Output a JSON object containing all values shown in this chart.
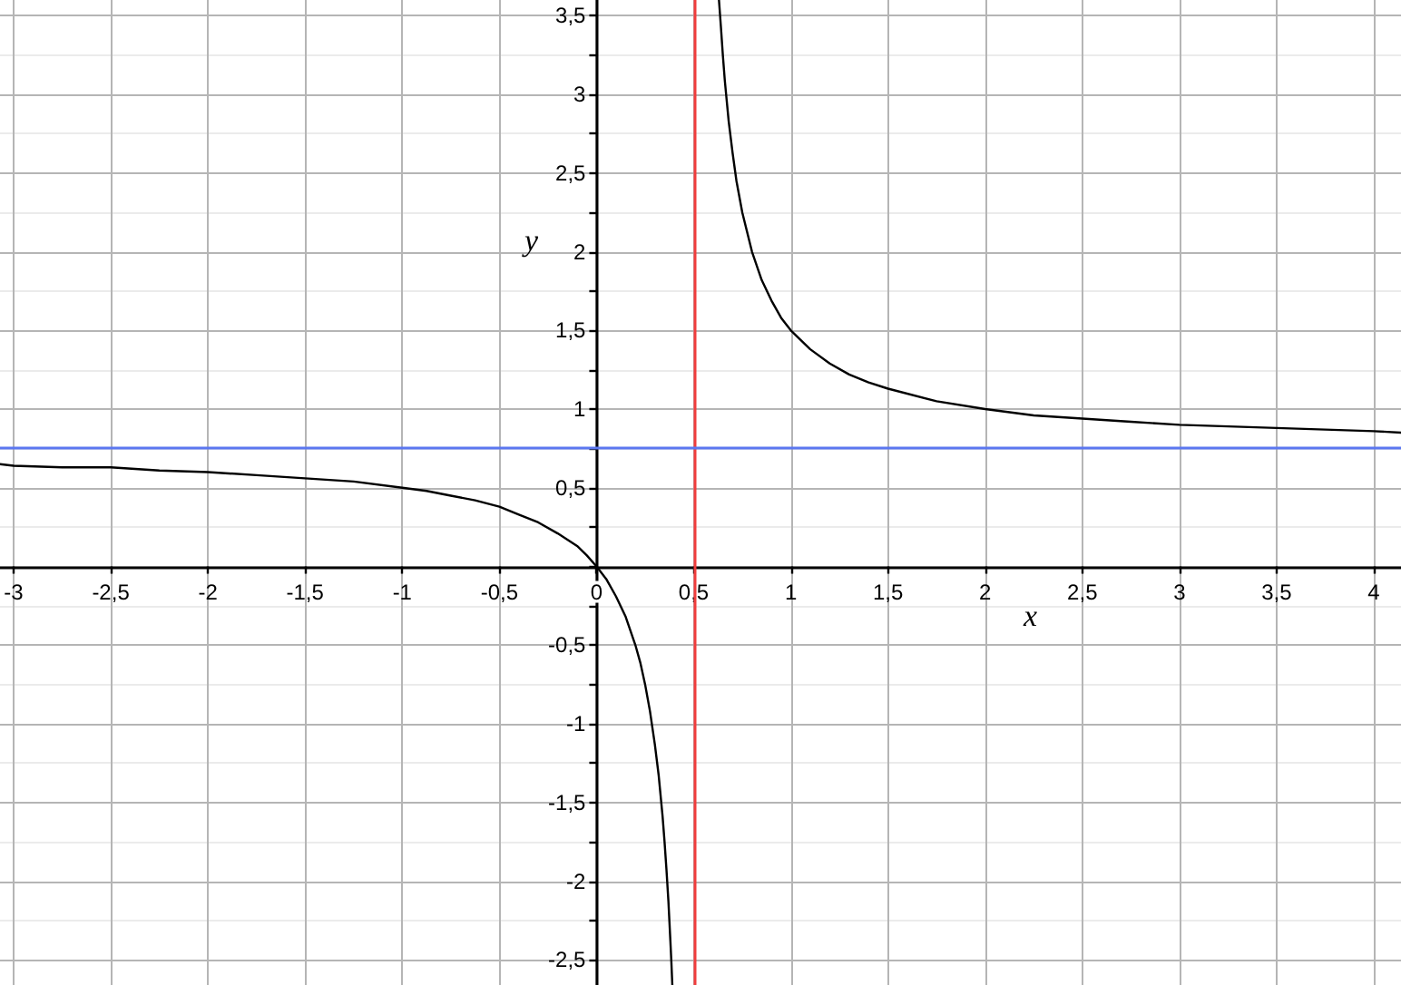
{
  "chart_data": {
    "type": "line",
    "xlabel": "x",
    "ylabel": "y",
    "series": [
      {
        "color": "#000000",
        "x": [
          -3.07,
          -3,
          -2.75,
          -2.5,
          -2.25,
          -2,
          -1.75,
          -1.5,
          -1.25,
          -1,
          -0.875,
          -0.75,
          -0.625,
          -0.5,
          -0.4,
          -0.3,
          -0.2,
          -0.15,
          -0.1,
          -0.05,
          0,
          0.05,
          0.1,
          0.15,
          0.2,
          0.225,
          0.25,
          0.275,
          0.3,
          0.32,
          0.34,
          0.35,
          0.36,
          0.37,
          0.38,
          0.385,
          0.39
        ],
        "values": [
          0.65,
          0.64,
          0.63,
          0.63,
          0.61,
          0.6,
          0.58,
          0.56,
          0.54,
          0.5,
          0.48,
          0.45,
          0.42,
          0.38,
          0.33,
          0.28,
          0.21,
          0.17,
          0.13,
          0.07,
          0,
          -0.08,
          -0.19,
          -0.32,
          -0.5,
          -0.61,
          -0.75,
          -0.92,
          -1.13,
          -1.33,
          -1.59,
          -1.75,
          -1.93,
          -2.13,
          -2.38,
          -2.51,
          -2.66
        ]
      },
      {
        "color": "#000000",
        "x": [
          0.63,
          0.64,
          0.65,
          0.66,
          0.67,
          0.68,
          0.7,
          0.72,
          0.75,
          0.8,
          0.85,
          0.9,
          0.95,
          1,
          1.1,
          1.2,
          1.3,
          1.4,
          1.5,
          1.75,
          2,
          2.25,
          2.5,
          2.75,
          3,
          3.5,
          4,
          4.14
        ],
        "values": [
          3.6,
          3.43,
          3.25,
          3.09,
          2.96,
          2.83,
          2.63,
          2.45,
          2.25,
          2,
          1.82,
          1.69,
          1.58,
          1.5,
          1.38,
          1.29,
          1.22,
          1.17,
          1.13,
          1.05,
          1,
          0.96,
          0.94,
          0.92,
          0.9,
          0.88,
          0.86,
          0.85
        ]
      }
    ],
    "xlim": [
      -3.07,
      4.14
    ],
    "ylim": [
      -2.66,
      3.6
    ],
    "xticks": [
      {
        "value": -3,
        "label": "-3"
      },
      {
        "value": -2.5,
        "label": "-2,5"
      },
      {
        "value": -2,
        "label": "-2"
      },
      {
        "value": -1.5,
        "label": "-1,5"
      },
      {
        "value": -1,
        "label": "-1"
      },
      {
        "value": -0.5,
        "label": "-0,5"
      },
      0,
      {
        "value": 0.5,
        "label": "0,5"
      },
      1,
      {
        "value": 1.5,
        "label": "1,5"
      },
      2,
      {
        "value": 2.5,
        "label": "2,5"
      },
      3,
      {
        "value": 3.5,
        "label": "3,5"
      },
      4
    ],
    "yticks": [
      {
        "value": -2.5,
        "label": "-2,5"
      },
      {
        "value": -2.25,
        "label": null
      },
      {
        "value": -2,
        "label": "-2"
      },
      {
        "value": -1.75,
        "label": null
      },
      {
        "value": -1.5,
        "label": "-1,5"
      },
      {
        "value": -1.25,
        "label": null
      },
      {
        "value": -1,
        "label": "-1"
      },
      {
        "value": -0.75,
        "label": null
      },
      {
        "value": -0.5,
        "label": "-0,5"
      },
      {
        "value": -0.25,
        "label": null
      },
      {
        "value": 0,
        "label": null
      },
      {
        "value": 0.25,
        "label": null
      },
      {
        "value": 0.5,
        "label": "0,5"
      },
      {
        "value": 0.75,
        "label": null
      },
      1,
      {
        "value": 1.25,
        "label": null
      },
      {
        "value": 1.5,
        "label": "1,5"
      },
      {
        "value": 1.75,
        "label": null
      },
      2,
      {
        "value": 2.25,
        "label": null
      },
      {
        "value": 2.5,
        "label": "2,5"
      },
      {
        "value": 2.75,
        "label": null
      },
      3,
      {
        "value": 3.25,
        "label": null
      },
      {
        "value": 3.5,
        "label": "3,5"
      }
    ],
    "ref_lines": [
      {
        "axis": "x",
        "value": 0.5,
        "color": "#f03c3c",
        "line_style": "solid"
      },
      {
        "axis": "y",
        "value": 0.75,
        "color": "#5b77f0",
        "line_style": "solid"
      }
    ],
    "grid": true,
    "marker": "none",
    "line_style": "solid"
  }
}
